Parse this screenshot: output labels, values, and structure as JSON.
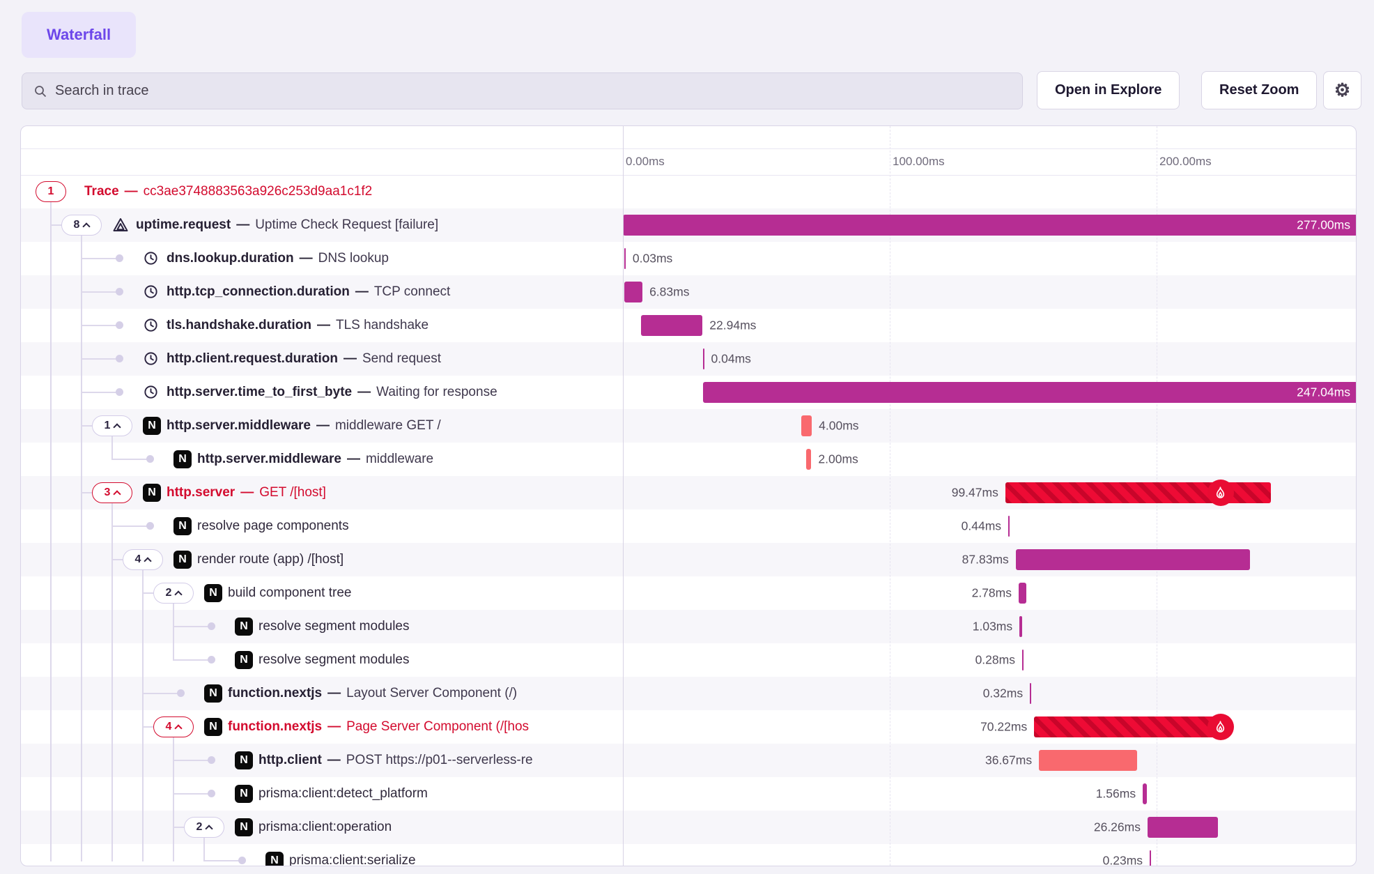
{
  "tab": {
    "label": "Waterfall"
  },
  "toolbar": {
    "search_placeholder": "Search in trace",
    "open_in_explore": "Open in Explore",
    "reset_zoom": "Reset Zoom",
    "settings_icon": "gear-icon"
  },
  "timeline": {
    "ticks": [
      {
        "label": "0.00ms",
        "ms": 0
      },
      {
        "label": "100.00ms",
        "ms": 100
      },
      {
        "label": "200.00ms",
        "ms": 200
      }
    ]
  },
  "colors": {
    "accent_purple": "#6d47ea",
    "magenta": "#b62d93",
    "salmon": "#f9696e",
    "error_red": "#ee0b35",
    "error_stripe": "#c9052a",
    "error_text": "#d30b2e",
    "connector": "#ddd8eb",
    "row_alt": "#f7f6fa"
  },
  "rows": [
    {
      "name": "Trace",
      "desc": "cc3ae3748883563a926c253d9aa1c1f2",
      "bold": true,
      "error": true,
      "icon": null,
      "pill": {
        "count": "1",
        "caret": false,
        "error": true
      },
      "depth": 0,
      "bar": null
    },
    {
      "name": "uptime.request",
      "desc": "Uptime Check Request [failure]",
      "bold": true,
      "error": false,
      "icon": "uptime",
      "pill": {
        "count": "8",
        "caret": true,
        "error": false
      },
      "depth": 1,
      "bar": {
        "start_ms": 0,
        "dur_ms": 277.0,
        "color": "magenta",
        "label": "277.00ms",
        "label_pos": "inside"
      }
    },
    {
      "name": "dns.lookup.duration",
      "desc": "DNS lookup",
      "bold": true,
      "error": false,
      "icon": "clock",
      "pill": null,
      "depth": 2,
      "bar": {
        "start_ms": 0.5,
        "dur_ms": 0.03,
        "color": "magenta",
        "label": "0.03ms",
        "label_pos": "right"
      }
    },
    {
      "name": "http.tcp_connection.duration",
      "desc": "TCP connect",
      "bold": true,
      "error": false,
      "icon": "clock",
      "pill": null,
      "depth": 2,
      "bar": {
        "start_ms": 0.5,
        "dur_ms": 6.83,
        "color": "magenta",
        "label": "6.83ms",
        "label_pos": "right"
      }
    },
    {
      "name": "tls.handshake.duration",
      "desc": "TLS handshake",
      "bold": true,
      "error": false,
      "icon": "clock",
      "pill": null,
      "depth": 2,
      "bar": {
        "start_ms": 6.9,
        "dur_ms": 22.94,
        "color": "magenta",
        "label": "22.94ms",
        "label_pos": "right"
      }
    },
    {
      "name": "http.client.request.duration",
      "desc": "Send request",
      "bold": true,
      "error": false,
      "icon": "clock",
      "pill": null,
      "depth": 2,
      "bar": {
        "start_ms": 29.9,
        "dur_ms": 0.04,
        "color": "magenta",
        "label": "0.04ms",
        "label_pos": "right"
      }
    },
    {
      "name": "http.server.time_to_first_byte",
      "desc": "Waiting for response",
      "bold": true,
      "error": false,
      "icon": "clock",
      "pill": null,
      "depth": 2,
      "bar": {
        "start_ms": 29.9,
        "dur_ms": 247.04,
        "color": "magenta",
        "label": "247.04ms",
        "label_pos": "inside"
      }
    },
    {
      "name": "http.server.middleware",
      "desc": "middleware GET /",
      "bold": true,
      "error": false,
      "icon": "nextjs",
      "pill": {
        "count": "1",
        "caret": true,
        "error": false
      },
      "depth": 2,
      "bar": {
        "start_ms": 66.8,
        "dur_ms": 4.0,
        "color": "salmon",
        "label": "4.00ms",
        "label_pos": "right"
      }
    },
    {
      "name": "http.server.middleware",
      "desc": "middleware",
      "bold": true,
      "error": false,
      "icon": "nextjs",
      "pill": null,
      "depth": 3,
      "bar": {
        "start_ms": 68.6,
        "dur_ms": 2.0,
        "color": "salmon",
        "label": "2.00ms",
        "label_pos": "right"
      }
    },
    {
      "name": "http.server",
      "desc": "GET /[host]",
      "bold": true,
      "error": true,
      "icon": "nextjs",
      "pill": {
        "count": "3",
        "caret": true,
        "error": true
      },
      "depth": 2,
      "bar": {
        "start_ms": 143.3,
        "dur_ms": 99.47,
        "color": "error",
        "label": "99.47ms",
        "label_pos": "left",
        "flame_at_ms": 224
      }
    },
    {
      "name": "resolve page components",
      "desc": null,
      "bold": false,
      "error": false,
      "icon": "nextjs",
      "pill": null,
      "depth": 3,
      "bar": {
        "start_ms": 144.4,
        "dur_ms": 0.44,
        "color": "magenta",
        "label": "0.44ms",
        "label_pos": "left"
      }
    },
    {
      "name": "render route (app) /[host]",
      "desc": null,
      "bold": false,
      "error": false,
      "icon": "nextjs",
      "pill": {
        "count": "4",
        "caret": true,
        "error": false
      },
      "depth": 3,
      "bar": {
        "start_ms": 147.2,
        "dur_ms": 87.83,
        "color": "magenta",
        "label": "87.83ms",
        "label_pos": "left"
      }
    },
    {
      "name": "build component tree",
      "desc": null,
      "bold": false,
      "error": false,
      "icon": "nextjs",
      "pill": {
        "count": "2",
        "caret": true,
        "error": false
      },
      "depth": 4,
      "bar": {
        "start_ms": 148.3,
        "dur_ms": 2.78,
        "color": "magenta",
        "label": "2.78ms",
        "label_pos": "left"
      }
    },
    {
      "name": "resolve segment modules",
      "desc": null,
      "bold": false,
      "error": false,
      "icon": "nextjs",
      "pill": null,
      "depth": 5,
      "bar": {
        "start_ms": 148.6,
        "dur_ms": 1.03,
        "color": "magenta",
        "label": "1.03ms",
        "label_pos": "left"
      }
    },
    {
      "name": "resolve segment modules",
      "desc": null,
      "bold": false,
      "error": false,
      "icon": "nextjs",
      "pill": null,
      "depth": 5,
      "bar": {
        "start_ms": 149.6,
        "dur_ms": 0.28,
        "color": "magenta",
        "label": "0.28ms",
        "label_pos": "left"
      }
    },
    {
      "name": "function.nextjs",
      "desc": "Layout Server Component (/)",
      "bold": true,
      "error": false,
      "icon": "nextjs",
      "pill": null,
      "depth": 4,
      "bar": {
        "start_ms": 152.5,
        "dur_ms": 0.32,
        "color": "magenta",
        "label": "0.32ms",
        "label_pos": "left"
      }
    },
    {
      "name": "function.nextjs",
      "desc": "Page Server Component (/[hos",
      "bold": true,
      "error": true,
      "icon": "nextjs",
      "pill": {
        "count": "4",
        "caret": true,
        "error": true
      },
      "depth": 4,
      "bar": {
        "start_ms": 154.1,
        "dur_ms": 70.22,
        "color": "error",
        "label": "70.22ms",
        "label_pos": "left",
        "flame_at_ms": 224
      }
    },
    {
      "name": "http.client",
      "desc": "POST https://p01--serverless-re",
      "bold": true,
      "error": false,
      "icon": "nextjs",
      "pill": null,
      "depth": 5,
      "bar": {
        "start_ms": 155.9,
        "dur_ms": 36.67,
        "color": "salmon",
        "label": "36.67ms",
        "label_pos": "left"
      }
    },
    {
      "name": "prisma:client:detect_platform",
      "desc": null,
      "bold": false,
      "error": false,
      "icon": "nextjs",
      "pill": null,
      "depth": 5,
      "bar": {
        "start_ms": 194.8,
        "dur_ms": 1.56,
        "color": "magenta",
        "label": "1.56ms",
        "label_pos": "left"
      }
    },
    {
      "name": "prisma:client:operation",
      "desc": null,
      "bold": false,
      "error": false,
      "icon": "nextjs",
      "pill": {
        "count": "2",
        "caret": true,
        "error": false
      },
      "depth": 5,
      "bar": {
        "start_ms": 196.6,
        "dur_ms": 26.26,
        "color": "magenta",
        "label": "26.26ms",
        "label_pos": "left"
      }
    },
    {
      "name": "prisma:client:serialize",
      "desc": null,
      "bold": false,
      "error": false,
      "icon": "nextjs",
      "pill": null,
      "depth": 6,
      "bar": {
        "start_ms": 197.4,
        "dur_ms": 0.23,
        "color": "magenta",
        "label": "0.23ms",
        "label_pos": "left"
      }
    }
  ]
}
